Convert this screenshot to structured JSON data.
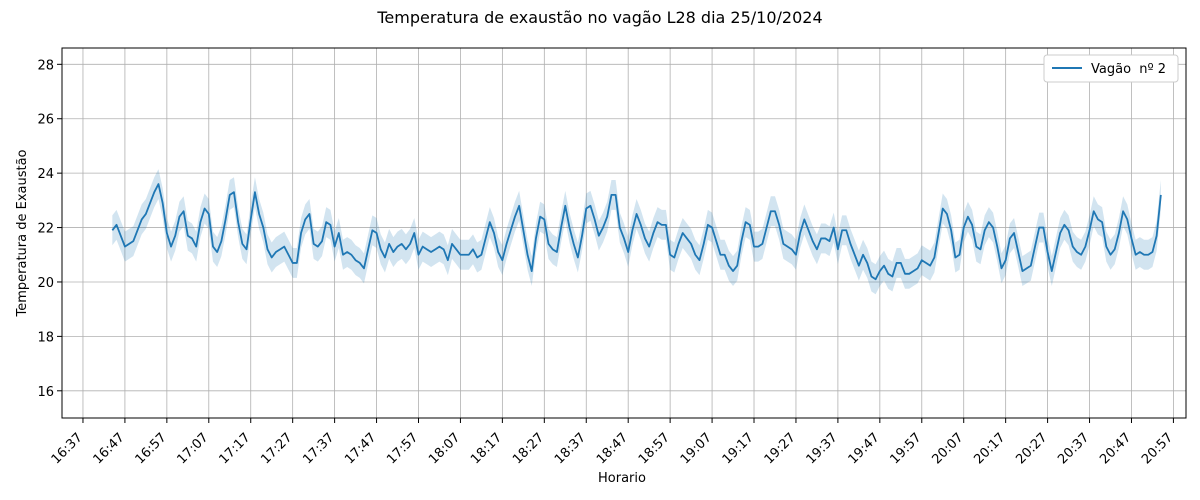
{
  "chart_data": {
    "type": "line",
    "title": "Temperatura de exaustão no vagão L28 dia 25/10/2024",
    "xlabel": "Horario",
    "ylabel": "Temperatura de Exaustão",
    "ylim": [
      15,
      28.6
    ],
    "y_ticks": [
      "16",
      "18",
      "20",
      "22",
      "24",
      "26",
      "28"
    ],
    "x_tick_labels": [
      "16:37",
      "16:47",
      "16:57",
      "17:07",
      "17:17",
      "17:27",
      "17:37",
      "17:47",
      "17:57",
      "18:07",
      "18:17",
      "18:27",
      "18:37",
      "18:47",
      "18:57",
      "19:07",
      "19:17",
      "19:27",
      "19:37",
      "19:47",
      "19:57",
      "20:07",
      "20:17",
      "20:27",
      "20:37",
      "20:47",
      "20:57"
    ],
    "x_range": [
      "16:32",
      "21:00"
    ],
    "grid": true,
    "legend_position": "top-right",
    "series": [
      {
        "name": "Vagão  nº 2",
        "color": "#1f77b4",
        "band_color": "#1f77b4",
        "band_width": 0.55,
        "points": [
          [
            "16:44",
            21.9
          ],
          [
            "16:45",
            22.1
          ],
          [
            "16:46",
            21.7
          ],
          [
            "16:47",
            21.3
          ],
          [
            "16:48",
            21.4
          ],
          [
            "16:49",
            21.5
          ],
          [
            "16:50",
            21.9
          ],
          [
            "16:51",
            22.3
          ],
          [
            "16:52",
            22.5
          ],
          [
            "16:53",
            22.9
          ],
          [
            "16:54",
            23.3
          ],
          [
            "16:55",
            23.6
          ],
          [
            "16:56",
            22.9
          ],
          [
            "16:57",
            21.8
          ],
          [
            "16:58",
            21.3
          ],
          [
            "16:59",
            21.7
          ],
          [
            "17:00",
            22.4
          ],
          [
            "17:01",
            22.6
          ],
          [
            "17:02",
            21.7
          ],
          [
            "17:03",
            21.6
          ],
          [
            "17:04",
            21.3
          ],
          [
            "17:05",
            22.2
          ],
          [
            "17:06",
            22.7
          ],
          [
            "17:07",
            22.5
          ],
          [
            "17:08",
            21.3
          ],
          [
            "17:09",
            21.1
          ],
          [
            "17:10",
            21.5
          ],
          [
            "17:11",
            22.3
          ],
          [
            "17:12",
            23.2
          ],
          [
            "17:13",
            23.3
          ],
          [
            "17:14",
            22.2
          ],
          [
            "17:15",
            21.4
          ],
          [
            "17:16",
            21.2
          ],
          [
            "17:17",
            22.3
          ],
          [
            "17:18",
            23.3
          ],
          [
            "17:19",
            22.5
          ],
          [
            "17:20",
            22.0
          ],
          [
            "17:21",
            21.2
          ],
          [
            "17:22",
            20.9
          ],
          [
            "17:23",
            21.1
          ],
          [
            "17:24",
            21.2
          ],
          [
            "17:25",
            21.3
          ],
          [
            "17:26",
            21.0
          ],
          [
            "17:27",
            20.7
          ],
          [
            "17:28",
            20.7
          ],
          [
            "17:29",
            21.8
          ],
          [
            "17:30",
            22.3
          ],
          [
            "17:31",
            22.5
          ],
          [
            "17:32",
            21.4
          ],
          [
            "17:33",
            21.3
          ],
          [
            "17:34",
            21.5
          ],
          [
            "17:35",
            22.2
          ],
          [
            "17:36",
            22.1
          ],
          [
            "17:37",
            21.3
          ],
          [
            "17:38",
            21.8
          ],
          [
            "17:39",
            21.0
          ],
          [
            "17:40",
            21.1
          ],
          [
            "17:41",
            21.0
          ],
          [
            "17:42",
            20.8
          ],
          [
            "17:43",
            20.7
          ],
          [
            "17:44",
            20.5
          ],
          [
            "17:45",
            21.2
          ],
          [
            "17:46",
            21.9
          ],
          [
            "17:47",
            21.8
          ],
          [
            "17:48",
            21.2
          ],
          [
            "17:49",
            20.9
          ],
          [
            "17:50",
            21.4
          ],
          [
            "17:51",
            21.1
          ],
          [
            "17:52",
            21.3
          ],
          [
            "17:53",
            21.4
          ],
          [
            "17:54",
            21.2
          ],
          [
            "17:55",
            21.4
          ],
          [
            "17:56",
            21.8
          ],
          [
            "17:57",
            21.0
          ],
          [
            "17:58",
            21.3
          ],
          [
            "17:59",
            21.2
          ],
          [
            "18:00",
            21.1
          ],
          [
            "18:01",
            21.2
          ],
          [
            "18:02",
            21.3
          ],
          [
            "18:03",
            21.2
          ],
          [
            "18:04",
            20.8
          ],
          [
            "18:05",
            21.4
          ],
          [
            "18:06",
            21.2
          ],
          [
            "18:07",
            21.0
          ],
          [
            "18:08",
            21.0
          ],
          [
            "18:09",
            21.0
          ],
          [
            "18:10",
            21.2
          ],
          [
            "18:11",
            20.9
          ],
          [
            "18:12",
            21.0
          ],
          [
            "18:13",
            21.6
          ],
          [
            "18:14",
            22.2
          ],
          [
            "18:15",
            21.8
          ],
          [
            "18:16",
            21.1
          ],
          [
            "18:17",
            20.8
          ],
          [
            "18:18",
            21.4
          ],
          [
            "18:19",
            21.9
          ],
          [
            "18:20",
            22.4
          ],
          [
            "18:21",
            22.8
          ],
          [
            "18:22",
            21.9
          ],
          [
            "18:23",
            21.0
          ],
          [
            "18:24",
            20.4
          ],
          [
            "18:25",
            21.6
          ],
          [
            "18:26",
            22.4
          ],
          [
            "18:27",
            22.3
          ],
          [
            "18:28",
            21.4
          ],
          [
            "18:29",
            21.2
          ],
          [
            "18:30",
            21.1
          ],
          [
            "18:31",
            22.0
          ],
          [
            "18:32",
            22.8
          ],
          [
            "18:33",
            22.0
          ],
          [
            "18:34",
            21.4
          ],
          [
            "18:35",
            20.9
          ],
          [
            "18:36",
            21.7
          ],
          [
            "18:37",
            22.7
          ],
          [
            "18:38",
            22.8
          ],
          [
            "18:39",
            22.3
          ],
          [
            "18:40",
            21.7
          ],
          [
            "18:41",
            22.0
          ],
          [
            "18:42",
            22.4
          ],
          [
            "18:43",
            23.2
          ],
          [
            "18:44",
            23.2
          ],
          [
            "18:45",
            22.0
          ],
          [
            "18:46",
            21.6
          ],
          [
            "18:47",
            21.1
          ],
          [
            "18:48",
            21.9
          ],
          [
            "18:49",
            22.5
          ],
          [
            "18:50",
            22.1
          ],
          [
            "18:51",
            21.6
          ],
          [
            "18:52",
            21.3
          ],
          [
            "18:53",
            21.8
          ],
          [
            "18:54",
            22.2
          ],
          [
            "18:55",
            22.1
          ],
          [
            "18:56",
            22.1
          ],
          [
            "18:57",
            21.0
          ],
          [
            "18:58",
            20.9
          ],
          [
            "18:59",
            21.4
          ],
          [
            "19:00",
            21.8
          ],
          [
            "19:01",
            21.6
          ],
          [
            "19:02",
            21.4
          ],
          [
            "19:03",
            21.0
          ],
          [
            "19:04",
            20.8
          ],
          [
            "19:05",
            21.4
          ],
          [
            "19:06",
            22.1
          ],
          [
            "19:07",
            22.0
          ],
          [
            "19:08",
            21.5
          ],
          [
            "19:09",
            21.0
          ],
          [
            "19:10",
            21.0
          ],
          [
            "19:11",
            20.6
          ],
          [
            "19:12",
            20.4
          ],
          [
            "19:13",
            20.6
          ],
          [
            "19:14",
            21.5
          ],
          [
            "19:15",
            22.2
          ],
          [
            "19:16",
            22.1
          ],
          [
            "19:17",
            21.3
          ],
          [
            "19:18",
            21.3
          ],
          [
            "19:19",
            21.4
          ],
          [
            "19:20",
            22.0
          ],
          [
            "19:21",
            22.6
          ],
          [
            "19:22",
            22.6
          ],
          [
            "19:23",
            22.1
          ],
          [
            "19:24",
            21.4
          ],
          [
            "19:25",
            21.3
          ],
          [
            "19:26",
            21.2
          ],
          [
            "19:27",
            21.0
          ],
          [
            "19:28",
            21.8
          ],
          [
            "19:29",
            22.3
          ],
          [
            "19:30",
            21.9
          ],
          [
            "19:31",
            21.5
          ],
          [
            "19:32",
            21.2
          ],
          [
            "19:33",
            21.6
          ],
          [
            "19:34",
            21.6
          ],
          [
            "19:35",
            21.5
          ],
          [
            "19:36",
            22.0
          ],
          [
            "19:37",
            21.2
          ],
          [
            "19:38",
            21.9
          ],
          [
            "19:39",
            21.9
          ],
          [
            "19:40",
            21.4
          ],
          [
            "19:41",
            21.0
          ],
          [
            "19:42",
            20.6
          ],
          [
            "19:43",
            21.0
          ],
          [
            "19:44",
            20.7
          ],
          [
            "19:45",
            20.2
          ],
          [
            "19:46",
            20.1
          ],
          [
            "19:47",
            20.4
          ],
          [
            "19:48",
            20.6
          ],
          [
            "19:49",
            20.3
          ],
          [
            "19:50",
            20.2
          ],
          [
            "19:51",
            20.7
          ],
          [
            "19:52",
            20.7
          ],
          [
            "19:53",
            20.3
          ],
          [
            "19:54",
            20.3
          ],
          [
            "19:55",
            20.4
          ],
          [
            "19:56",
            20.5
          ],
          [
            "19:57",
            20.8
          ],
          [
            "19:58",
            20.7
          ],
          [
            "19:59",
            20.6
          ],
          [
            "20:00",
            20.9
          ],
          [
            "20:01",
            21.8
          ],
          [
            "20:02",
            22.7
          ],
          [
            "20:03",
            22.5
          ],
          [
            "20:04",
            21.9
          ],
          [
            "20:05",
            20.9
          ],
          [
            "20:06",
            21.0
          ],
          [
            "20:07",
            22.0
          ],
          [
            "20:08",
            22.4
          ],
          [
            "20:09",
            22.1
          ],
          [
            "20:10",
            21.3
          ],
          [
            "20:11",
            21.2
          ],
          [
            "20:12",
            21.9
          ],
          [
            "20:13",
            22.2
          ],
          [
            "20:14",
            22.0
          ],
          [
            "20:15",
            21.3
          ],
          [
            "20:16",
            20.5
          ],
          [
            "20:17",
            20.8
          ],
          [
            "20:18",
            21.6
          ],
          [
            "20:19",
            21.8
          ],
          [
            "20:20",
            21.1
          ],
          [
            "20:21",
            20.4
          ],
          [
            "20:22",
            20.5
          ],
          [
            "20:23",
            20.6
          ],
          [
            "20:24",
            21.3
          ],
          [
            "20:25",
            22.0
          ],
          [
            "20:26",
            22.0
          ],
          [
            "20:27",
            21.1
          ],
          [
            "20:28",
            20.4
          ],
          [
            "20:29",
            21.1
          ],
          [
            "20:30",
            21.8
          ],
          [
            "20:31",
            22.1
          ],
          [
            "20:32",
            21.9
          ],
          [
            "20:33",
            21.3
          ],
          [
            "20:34",
            21.1
          ],
          [
            "20:35",
            21.0
          ],
          [
            "20:36",
            21.3
          ],
          [
            "20:37",
            21.9
          ],
          [
            "20:38",
            22.6
          ],
          [
            "20:39",
            22.3
          ],
          [
            "20:40",
            22.2
          ],
          [
            "20:41",
            21.3
          ],
          [
            "20:42",
            21.0
          ],
          [
            "20:43",
            21.2
          ],
          [
            "20:44",
            21.8
          ],
          [
            "20:45",
            22.6
          ],
          [
            "20:46",
            22.3
          ],
          [
            "20:47",
            21.6
          ],
          [
            "20:48",
            21.0
          ],
          [
            "20:49",
            21.1
          ],
          [
            "20:50",
            21.0
          ],
          [
            "20:51",
            21.0
          ],
          [
            "20:52",
            21.1
          ],
          [
            "20:53",
            21.7
          ],
          [
            "20:54",
            23.2
          ]
        ]
      }
    ]
  }
}
